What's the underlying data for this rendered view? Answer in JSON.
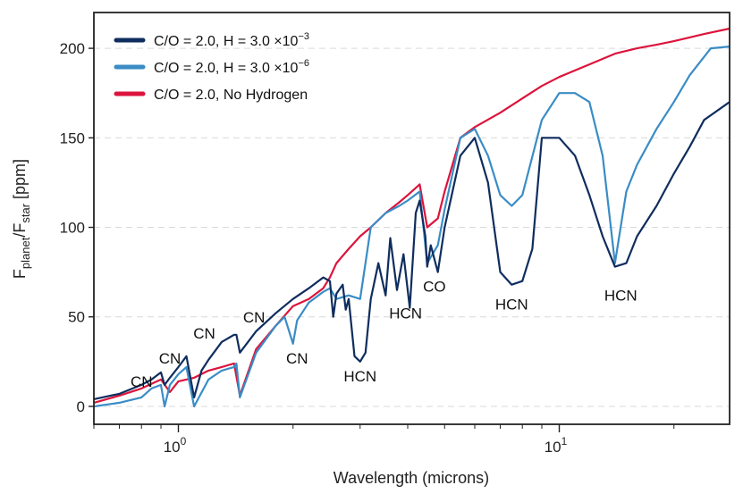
{
  "chart_data": {
    "type": "line",
    "xscale": "log",
    "xlabel": "Wavelength (microns)",
    "ylabel": {
      "main": "F",
      "sub1": "planet",
      "mid": "/F",
      "sub2": "star",
      "tail": " [ppm]"
    },
    "xlim": [
      0.6,
      28
    ],
    "ylim": [
      -10,
      220
    ],
    "yticks": [
      0,
      50,
      100,
      150,
      200
    ],
    "xticks_major": [
      {
        "value": 1,
        "base": "10",
        "exp": "0"
      },
      {
        "value": 10,
        "base": "10",
        "exp": "1"
      }
    ],
    "grid": "horizontal-dashed",
    "legend": {
      "placement": "top-left"
    },
    "series": [
      {
        "name": "C/O = 2.0, No Hydrogen",
        "label_text": "C/O = 2.0, No Hydrogen",
        "color": "#dc143c",
        "x": [
          0.6,
          0.7,
          0.8,
          0.9,
          0.95,
          1.0,
          1.1,
          1.2,
          1.3,
          1.4,
          1.45,
          1.6,
          1.8,
          2.0,
          2.2,
          2.4,
          2.5,
          2.6,
          2.8,
          3.0,
          3.2,
          3.5,
          3.8,
          4.0,
          4.3,
          4.5,
          4.8,
          5.0,
          5.5,
          6.0,
          7,
          8,
          9,
          10,
          12,
          14,
          16,
          18,
          20,
          24,
          28
        ],
        "values": [
          2,
          6,
          10,
          15,
          8,
          14,
          16,
          20,
          22,
          24,
          6,
          32,
          45,
          56,
          60,
          66,
          72,
          80,
          88,
          95,
          100,
          108,
          114,
          118,
          124,
          100,
          105,
          120,
          150,
          156,
          164,
          172,
          179,
          184,
          191,
          197,
          200,
          202,
          204,
          208,
          211
        ]
      },
      {
        "name": "C/O = 2.0, H = 3.0 ×10⁻⁶",
        "label_prefix": "C/O = 2.0, H = 3.0 ×10",
        "label_exp": "−6",
        "color": "#3a8cc6",
        "x": [
          0.6,
          0.7,
          0.8,
          0.85,
          0.9,
          0.92,
          0.95,
          1.0,
          1.05,
          1.1,
          1.2,
          1.3,
          1.4,
          1.42,
          1.45,
          1.6,
          1.8,
          1.9,
          2.0,
          2.05,
          2.2,
          2.4,
          2.5,
          2.6,
          2.8,
          3.0,
          3.2,
          3.5,
          3.8,
          4.0,
          4.3,
          4.5,
          4.8,
          5.0,
          5.5,
          6.0,
          6.5,
          7,
          7.5,
          8,
          9,
          10,
          11,
          12,
          13,
          14,
          15,
          16,
          18,
          20,
          22,
          25,
          28
        ],
        "values": [
          0,
          2,
          5,
          10,
          12,
          0,
          12,
          18,
          22,
          0,
          15,
          20,
          22,
          24,
          5,
          30,
          45,
          50,
          35,
          48,
          58,
          64,
          66,
          60,
          62,
          60,
          100,
          108,
          112,
          115,
          120,
          80,
          90,
          110,
          150,
          155,
          140,
          118,
          112,
          118,
          160,
          175,
          175,
          170,
          140,
          80,
          120,
          135,
          155,
          170,
          185,
          200,
          201
        ]
      },
      {
        "name": "C/O = 2.0, H = 3.0 ×10⁻³",
        "label_prefix": "C/O = 2.0, H = 3.0 ×10",
        "label_exp": "−3",
        "color": "#0f2d5e",
        "x": [
          0.6,
          0.7,
          0.8,
          0.85,
          0.9,
          0.92,
          0.95,
          1.0,
          1.05,
          1.1,
          1.15,
          1.2,
          1.3,
          1.4,
          1.42,
          1.45,
          1.6,
          1.8,
          2.0,
          2.2,
          2.4,
          2.5,
          2.55,
          2.6,
          2.7,
          2.75,
          2.8,
          2.9,
          3.0,
          3.1,
          3.2,
          3.35,
          3.5,
          3.6,
          3.75,
          3.9,
          4.05,
          4.2,
          4.3,
          4.45,
          4.5,
          4.6,
          4.8,
          5.0,
          5.5,
          6.0,
          6.5,
          7,
          7.5,
          8,
          8.5,
          9,
          10,
          11,
          12,
          13,
          14,
          15,
          16,
          18,
          20,
          22,
          24,
          28
        ],
        "values": [
          4,
          7,
          12,
          15,
          19,
          12,
          16,
          22,
          28,
          5,
          20,
          26,
          36,
          40,
          40,
          30,
          42,
          52,
          60,
          66,
          72,
          70,
          50,
          63,
          68,
          54,
          60,
          28,
          25,
          30,
          60,
          80,
          62,
          94,
          65,
          85,
          55,
          108,
          115,
          95,
          78,
          90,
          75,
          100,
          140,
          150,
          125,
          75,
          68,
          70,
          88,
          150,
          150,
          140,
          118,
          95,
          78,
          80,
          95,
          112,
          130,
          145,
          160,
          170
        ]
      }
    ],
    "annotations": [
      {
        "text": "CN",
        "x": 0.8,
        "y": 11
      },
      {
        "text": "CN",
        "x": 0.95,
        "y": 24
      },
      {
        "text": "CN",
        "x": 1.17,
        "y": 38
      },
      {
        "text": "CN",
        "x": 1.58,
        "y": 47
      },
      {
        "text": "CN",
        "x": 2.05,
        "y": 24
      },
      {
        "text": "HCN",
        "x": 3.0,
        "y": 14
      },
      {
        "text": "HCN",
        "x": 3.95,
        "y": 49
      },
      {
        "text": "CO",
        "x": 4.7,
        "y": 64
      },
      {
        "text": "HCN",
        "x": 7.5,
        "y": 54
      },
      {
        "text": "HCN",
        "x": 14.5,
        "y": 59
      }
    ]
  }
}
